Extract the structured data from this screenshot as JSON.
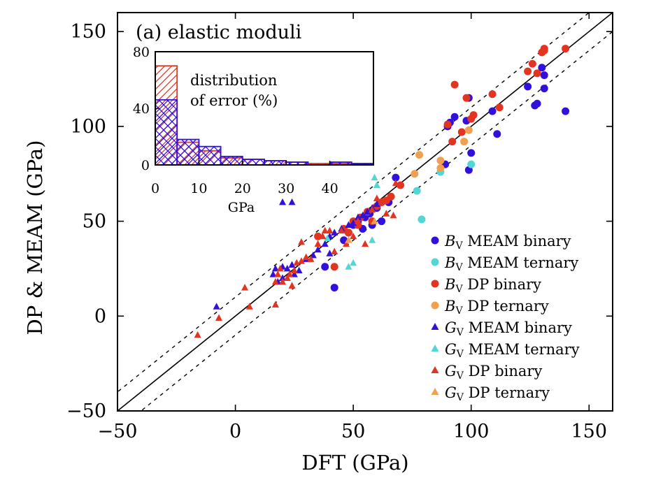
{
  "chart_data": {
    "type": "scatter",
    "panel_title": "(a) elastic moduli",
    "xlabel": "DFT (GPa)",
    "ylabel": "DP & MEAM (GPa)",
    "xlim": [
      -50,
      160
    ],
    "ylim": [
      -50,
      160
    ],
    "xticks": [
      -50,
      0,
      50,
      100,
      150
    ],
    "yticks": [
      -50,
      0,
      50,
      100,
      150
    ],
    "xtick_labels": [
      "−50",
      "0",
      "50",
      "100",
      "150"
    ],
    "ytick_labels": [
      "−50",
      "0",
      "50",
      "100",
      "150"
    ],
    "reference_lines": [
      {
        "style": "solid",
        "color": "#000000",
        "offset": 0
      },
      {
        "style": "dashed",
        "color": "#000000",
        "offset": 10
      },
      {
        "style": "dashed",
        "color": "#000000",
        "offset": -10
      }
    ],
    "legend_position": "bottom-right",
    "series": [
      {
        "name_sym": "B",
        "name_sub": "V",
        "name_rest": " MEAM binary",
        "marker": "circle",
        "color": "#3210dc",
        "points": [
          [
            42,
            15
          ],
          [
            38,
            26
          ],
          [
            48,
            44
          ],
          [
            50,
            48
          ],
          [
            52,
            50
          ],
          [
            55,
            52
          ],
          [
            57,
            54
          ],
          [
            60,
            57
          ],
          [
            62,
            50
          ],
          [
            58,
            48
          ],
          [
            46,
            40
          ],
          [
            54,
            46
          ],
          [
            65,
            60
          ],
          [
            68,
            73
          ],
          [
            89,
            80
          ],
          [
            90,
            100
          ],
          [
            91,
            102
          ],
          [
            93,
            105
          ],
          [
            98,
            103
          ],
          [
            99,
            77
          ],
          [
            100,
            86
          ],
          [
            99,
            115
          ],
          [
            111,
            96
          ],
          [
            109,
            108
          ],
          [
            127,
            111
          ],
          [
            128,
            112
          ],
          [
            124,
            121
          ],
          [
            131,
            120
          ],
          [
            131,
            127
          ],
          [
            130,
            131
          ],
          [
            140,
            108
          ]
        ]
      },
      {
        "name_sym": "B",
        "name_sub": "V",
        "name_rest": " MEAM ternary",
        "marker": "circle",
        "color": "#55d6d6",
        "points": [
          [
            77,
            66
          ],
          [
            79,
            51
          ],
          [
            87,
            76
          ],
          [
            100,
            80
          ]
        ]
      },
      {
        "name_sym": "B",
        "name_sub": "V",
        "name_rest": " DP binary",
        "marker": "circle",
        "color": "#e23420",
        "points": [
          [
            35,
            42
          ],
          [
            42,
            26
          ],
          [
            46,
            46
          ],
          [
            50,
            50
          ],
          [
            53,
            52
          ],
          [
            56,
            55
          ],
          [
            60,
            58
          ],
          [
            62,
            60
          ],
          [
            64,
            61
          ],
          [
            66,
            63
          ],
          [
            70,
            69
          ],
          [
            58,
            50
          ],
          [
            52,
            48
          ],
          [
            48,
            44
          ],
          [
            92,
            92
          ],
          [
            90,
            101
          ],
          [
            98,
            115
          ],
          [
            101,
            106
          ],
          [
            100,
            104
          ],
          [
            109,
            117
          ],
          [
            112,
            110
          ],
          [
            124,
            129
          ],
          [
            126,
            133
          ],
          [
            128,
            128
          ],
          [
            130,
            139
          ],
          [
            131,
            140
          ],
          [
            131,
            141
          ],
          [
            140,
            141
          ],
          [
            93,
            122
          ],
          [
            96,
            97
          ]
        ]
      },
      {
        "name_sym": "B",
        "name_sub": "V",
        "name_rest": " DP ternary",
        "marker": "circle",
        "color": "#f0a050",
        "points": [
          [
            76,
            75
          ],
          [
            78,
            85
          ],
          [
            87,
            78
          ],
          [
            87,
            82
          ],
          [
            97,
            92
          ],
          [
            99,
            98
          ]
        ]
      },
      {
        "name_sym": "G",
        "name_sub": "V",
        "name_rest": " MEAM binary",
        "marker": "triangle",
        "color": "#3210dc",
        "points": [
          [
            -8,
            5
          ],
          [
            16,
            22
          ],
          [
            17,
            25
          ],
          [
            18,
            18
          ],
          [
            20,
            26
          ],
          [
            20,
            20
          ],
          [
            22,
            25
          ],
          [
            24,
            27
          ],
          [
            25,
            22
          ],
          [
            27,
            24
          ],
          [
            30,
            30
          ],
          [
            33,
            32
          ],
          [
            35,
            35
          ],
          [
            38,
            38
          ],
          [
            40,
            42
          ],
          [
            42,
            44
          ],
          [
            45,
            46
          ],
          [
            48,
            48
          ],
          [
            50,
            49
          ],
          [
            52,
            52
          ],
          [
            54,
            53
          ],
          [
            56,
            55
          ],
          [
            58,
            57
          ],
          [
            60,
            59
          ],
          [
            20,
            60
          ],
          [
            24,
            60
          ],
          [
            40,
            33
          ]
        ]
      },
      {
        "name_sym": "G",
        "name_sub": "V",
        "name_rest": " MEAM ternary",
        "marker": "triangle",
        "color": "#55d6d6",
        "points": [
          [
            58,
            40
          ],
          [
            59,
            73
          ],
          [
            60,
            69
          ],
          [
            50,
            28
          ],
          [
            48,
            26
          ],
          [
            39,
            41
          ]
        ]
      },
      {
        "name_sym": "G",
        "name_sub": "V",
        "name_rest": " DP binary",
        "marker": "triangle",
        "color": "#e23420",
        "points": [
          [
            -16,
            -10
          ],
          [
            -7,
            -1
          ],
          [
            4,
            15
          ],
          [
            6,
            5
          ],
          [
            17,
            6
          ],
          [
            17,
            18
          ],
          [
            18,
            22
          ],
          [
            19,
            25
          ],
          [
            20,
            18
          ],
          [
            22,
            20
          ],
          [
            23,
            22
          ],
          [
            24,
            16
          ],
          [
            25,
            24
          ],
          [
            26,
            28
          ],
          [
            28,
            29
          ],
          [
            30,
            31
          ],
          [
            32,
            30
          ],
          [
            35,
            38
          ],
          [
            37,
            42
          ],
          [
            38,
            45
          ],
          [
            40,
            45
          ],
          [
            42,
            34
          ],
          [
            45,
            45
          ],
          [
            47,
            38
          ],
          [
            50,
            42
          ],
          [
            52,
            50
          ],
          [
            55,
            38
          ],
          [
            58,
            56
          ],
          [
            60,
            62
          ],
          [
            62,
            60
          ],
          [
            64,
            54
          ],
          [
            67,
            53
          ],
          [
            68,
            70
          ],
          [
            28,
            39
          ]
        ]
      },
      {
        "name_sym": "G",
        "name_sub": "V",
        "name_rest": " DP ternary",
        "marker": "triangle",
        "color": "#f0a050",
        "points": [
          [
            48,
            40
          ],
          [
            59,
            50
          ]
        ]
      }
    ],
    "inset": {
      "title_lines": [
        "distribution",
        "of error (%)"
      ],
      "xlabel": "GPa",
      "xlim": [
        0,
        50
      ],
      "ylim": [
        0,
        80
      ],
      "xticks": [
        0,
        10,
        20,
        30,
        40
      ],
      "yticks": [
        0,
        40,
        80
      ],
      "bin_width": 5,
      "histograms": [
        {
          "color": "#e23420",
          "hatch": "diagonal",
          "values": [
            70,
            16,
            10,
            5,
            4,
            3,
            2,
            1,
            1,
            1
          ]
        },
        {
          "color": "#3210dc",
          "hatch": "cross",
          "values": [
            46,
            18,
            13,
            6,
            4,
            3,
            2,
            0,
            2,
            1
          ]
        }
      ]
    }
  }
}
